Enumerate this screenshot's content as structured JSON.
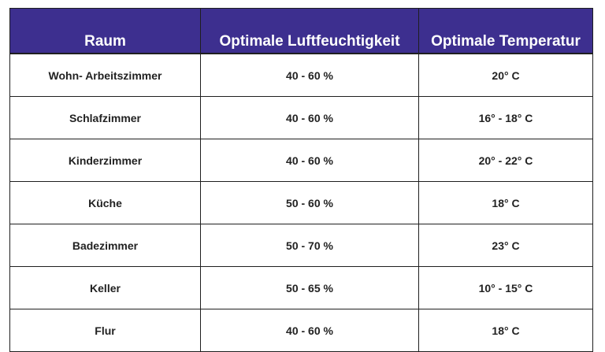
{
  "table": {
    "headers": [
      "Raum",
      "Optimale Luftfeuchtigkeit",
      "Optimale Temperatur"
    ],
    "rows": [
      [
        "Wohn- Arbeitszimmer",
        "40 - 60 %",
        "20° C"
      ],
      [
        "Schlafzimmer",
        "40 - 60 %",
        "16° - 18° C"
      ],
      [
        "Kinderzimmer",
        "40 - 60 %",
        "20° - 22° C"
      ],
      [
        "Küche",
        "50 - 60 %",
        "18° C"
      ],
      [
        "Badezimmer",
        "50 - 70 %",
        "23° C"
      ],
      [
        "Keller",
        "50 - 65 %",
        "10° - 15° C"
      ],
      [
        "Flur",
        "40 - 60 %",
        "18° C"
      ]
    ]
  },
  "colors": {
    "header_background": "#3d2f8f",
    "header_text": "#ffffff",
    "border": "#1f1f1f",
    "body_text": "#222222"
  }
}
